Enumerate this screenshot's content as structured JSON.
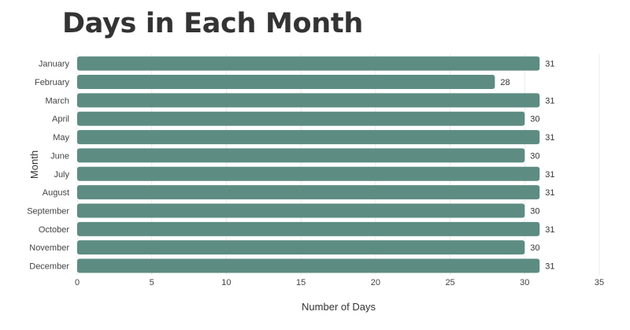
{
  "chart_data": {
    "type": "bar",
    "orientation": "horizontal",
    "title": "Days in Each Month",
    "xlabel": "Number of Days",
    "ylabel": "Month",
    "categories": [
      "January",
      "February",
      "March",
      "April",
      "May",
      "June",
      "July",
      "August",
      "September",
      "October",
      "November",
      "December"
    ],
    "values": [
      31,
      28,
      31,
      30,
      31,
      30,
      31,
      31,
      30,
      31,
      30,
      31
    ],
    "xlim": [
      0,
      35
    ],
    "xticks": [
      0,
      5,
      10,
      15,
      20,
      25,
      30,
      35
    ],
    "grid": true,
    "data_labels": true,
    "bar_color": "#5d8c82"
  }
}
